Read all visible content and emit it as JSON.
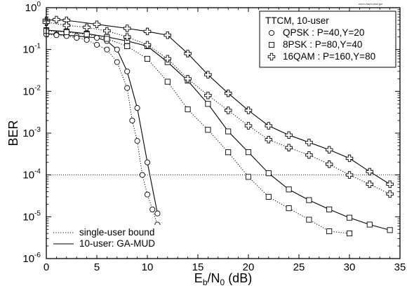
{
  "chart_data": {
    "type": "line",
    "title": "",
    "file_label": "mtcm-hard-vfad.gle",
    "xlabel": {
      "main": "E",
      "sub1": "b",
      "mid": "/N",
      "sub2": "0",
      "tail": " (dB)"
    },
    "ylabel": "BER",
    "x_scale": "linear",
    "y_scale": "log",
    "xlim": [
      0,
      35
    ],
    "ylim_exp": [
      -6,
      0
    ],
    "x_ticks": [
      "0",
      "5",
      "10",
      "15",
      "20",
      "25",
      "30",
      "35"
    ],
    "y_ticks": [
      {
        "base": "10",
        "exp": "-6"
      },
      {
        "base": "10",
        "exp": "-5"
      },
      {
        "base": "10",
        "exp": "-4"
      },
      {
        "base": "10",
        "exp": "-3"
      },
      {
        "base": "10",
        "exp": "-2"
      },
      {
        "base": "10",
        "exp": "-1"
      },
      {
        "base": "10",
        "exp": "0"
      }
    ],
    "reference_line": {
      "y": 0.0001,
      "style": "dotted"
    },
    "legend_top": {
      "title": "TTCM, 10-user",
      "entries": [
        {
          "marker": "circle",
          "label": "QPSK : P=40,Y=20"
        },
        {
          "marker": "square",
          "label": "8PSK : P=80,Y=40"
        },
        {
          "marker": "cross",
          "label": "16QAM : P=160,Y=80"
        }
      ]
    },
    "legend_bottom": [
      {
        "style": "dotted",
        "label": "single-user bound"
      },
      {
        "style": "solid",
        "label": "10-user: GA-MUD"
      }
    ],
    "series": [
      {
        "marker": "circle",
        "line": "solid",
        "x": [
          0,
          1,
          2,
          3,
          4,
          5,
          6,
          7,
          8,
          9,
          10,
          11
        ],
        "y": [
          0.24,
          0.23,
          0.22,
          0.21,
          0.2,
          0.19,
          0.16,
          0.1,
          0.03,
          0.004,
          0.0002,
          1.2e-05
        ]
      },
      {
        "marker": "circle",
        "line": "dotted",
        "x": [
          0,
          1,
          2,
          3,
          4,
          5,
          6,
          7,
          8,
          8.5,
          9,
          9.5,
          10,
          10.5,
          11
        ],
        "y": [
          0.23,
          0.22,
          0.21,
          0.19,
          0.17,
          0.13,
          0.1,
          0.05,
          0.012,
          0.002,
          0.00065,
          0.0001,
          3.4e-05,
          1.5e-05,
          6.5e-06
        ]
      },
      {
        "marker": "square",
        "line": "solid",
        "x": [
          0,
          2,
          4,
          6,
          8,
          10,
          12,
          14,
          16,
          18,
          20,
          22,
          24,
          26,
          28,
          30,
          32,
          34
        ],
        "y": [
          0.29,
          0.27,
          0.24,
          0.2,
          0.16,
          0.12,
          0.05,
          0.018,
          0.005,
          0.0011,
          0.00035,
          0.00011,
          4.5e-05,
          2.5e-05,
          1.5e-05,
          9.5e-06,
          6.5e-06,
          4.8e-06
        ]
      },
      {
        "marker": "square",
        "line": "dotted",
        "x": [
          0,
          2,
          4,
          6,
          8,
          10,
          12,
          14,
          16,
          18,
          20,
          22,
          24,
          26,
          28,
          30
        ],
        "y": [
          0.28,
          0.26,
          0.23,
          0.18,
          0.12,
          0.06,
          0.017,
          0.0037,
          0.0012,
          0.00035,
          9e-05,
          3e-05,
          1.6e-05,
          8.5e-06,
          4.5e-06,
          4e-06
        ]
      },
      {
        "marker": "cross",
        "line": "solid",
        "x": [
          0,
          1,
          2,
          5,
          8,
          10,
          12,
          14,
          16,
          18,
          20,
          22,
          24,
          26,
          28,
          30,
          32,
          34
        ],
        "y": [
          0.5,
          0.52,
          0.5,
          0.4,
          0.32,
          0.27,
          0.22,
          0.08,
          0.025,
          0.009,
          0.0035,
          0.0015,
          0.0009,
          0.0006,
          0.0004,
          0.00025,
          0.00012,
          6e-05
        ]
      },
      {
        "marker": "cross",
        "line": "dotted",
        "x": [
          0,
          2,
          4,
          6,
          8,
          10,
          12,
          14,
          16,
          18,
          20,
          22,
          24,
          26,
          28,
          30,
          32,
          34
        ],
        "y": [
          0.45,
          0.38,
          0.34,
          0.28,
          0.2,
          0.13,
          0.06,
          0.02,
          0.008,
          0.0035,
          0.0015,
          0.0007,
          0.00045,
          0.0003,
          0.00018,
          0.0001,
          6e-05,
          3.5e-05
        ]
      }
    ]
  }
}
